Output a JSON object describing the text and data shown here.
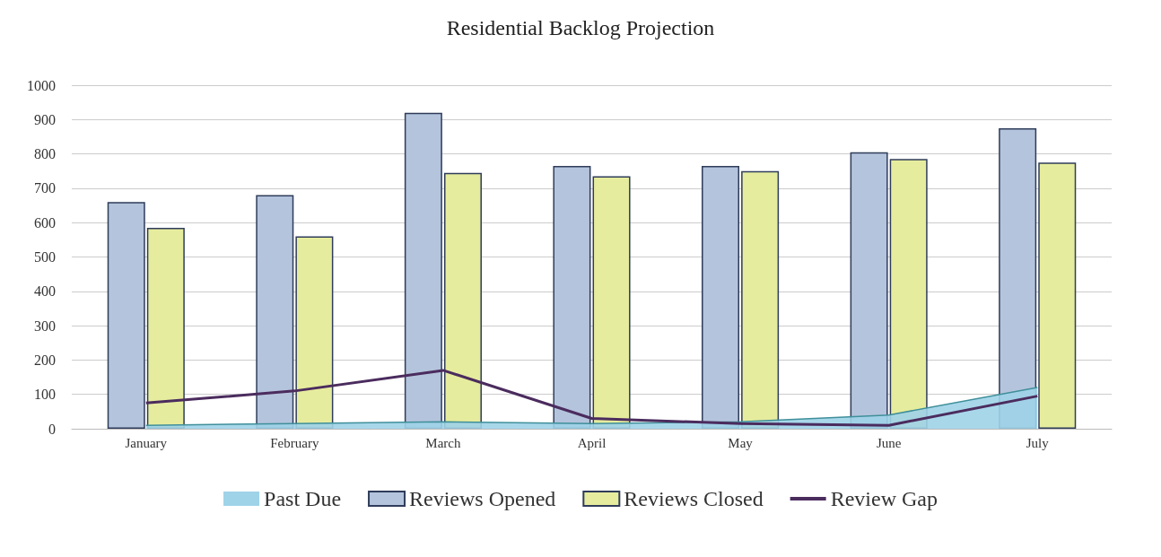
{
  "chart_data": {
    "type": "bar",
    "title": "Residential Backlog Projection",
    "categories": [
      "January",
      "February",
      "March",
      "April",
      "May",
      "June",
      "July"
    ],
    "series": [
      {
        "name": "Past Due",
        "type": "area",
        "color": "#9fd3e8",
        "values": [
          10,
          15,
          20,
          15,
          20,
          40,
          120
        ]
      },
      {
        "name": "Reviews Opened",
        "color": "#b4c4dc",
        "values": [
          660,
          680,
          920,
          765,
          765,
          805,
          875
        ]
      },
      {
        "name": "Reviews Closed",
        "color": "#e6ec9e",
        "values": [
          585,
          560,
          745,
          735,
          750,
          785,
          775
        ]
      },
      {
        "name": "Review Gap",
        "type": "line",
        "color": "#4b2c5e",
        "values": [
          75,
          110,
          170,
          30,
          15,
          10,
          95
        ]
      }
    ],
    "ylim": [
      0,
      1000
    ],
    "yticks": [
      0,
      100,
      200,
      300,
      400,
      500,
      600,
      700,
      800,
      900,
      1000
    ],
    "grid": "y",
    "legend": "bottom",
    "marker": "none"
  }
}
